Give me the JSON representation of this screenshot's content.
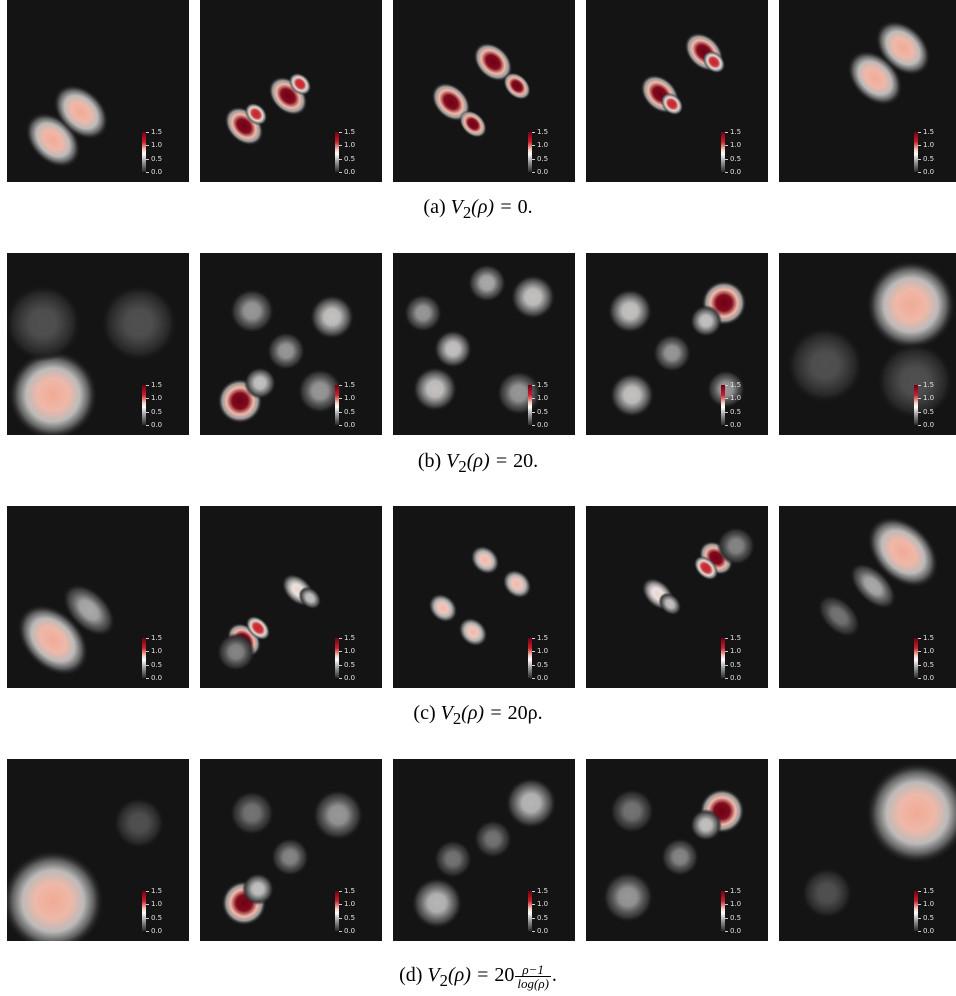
{
  "colorbar": {
    "ticks": [
      "1.5",
      "1.0",
      "0.5",
      "0.0"
    ]
  },
  "colors": {
    "background": "#141414",
    "high": "#7a0018",
    "mid": "#f2c9bd",
    "low": "#2a2a2a"
  },
  "rows": [
    {
      "caption": {
        "label": "(a)",
        "lhs": "V",
        "sub": "2",
        "arg": "(ρ) = ",
        "rhs": "0."
      }
    },
    {
      "caption": {
        "label": "(b)",
        "lhs": "V",
        "sub": "2",
        "arg": "(ρ) = ",
        "rhs": "20."
      }
    },
    {
      "caption": {
        "label": "(c)",
        "lhs": "V",
        "sub": "2",
        "arg": "(ρ) = ",
        "rhs": "20ρ."
      }
    },
    {
      "caption": {
        "label": "(d)",
        "lhs": "V",
        "sub": "2",
        "arg": "(ρ) = ",
        "rhs": "20",
        "num": "ρ−1",
        "den": "log(ρ)",
        "tail": "."
      }
    }
  ]
}
